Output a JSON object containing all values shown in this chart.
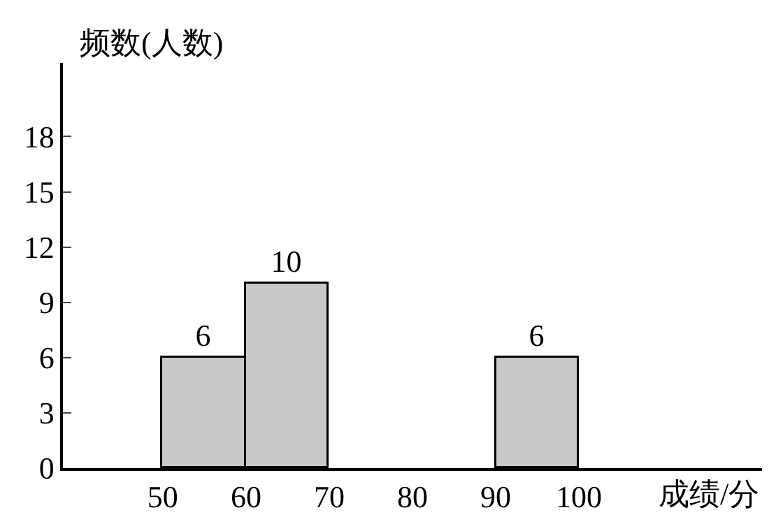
{
  "chart_data": {
    "type": "histogram",
    "xlabel": "成绩/分",
    "ylabel": "频数(人数)",
    "bins": [
      50,
      60,
      70,
      80,
      90,
      100
    ],
    "values": [
      6,
      10,
      null,
      null,
      6
    ],
    "color": "#c8c8c8",
    "data_labels": true,
    "xlim": [
      38,
      122
    ],
    "xticks": [
      50,
      60,
      70,
      80,
      90,
      100
    ],
    "ylim": [
      0,
      22
    ],
    "yticks": [
      0,
      3,
      6,
      9,
      12,
      15,
      18
    ]
  }
}
